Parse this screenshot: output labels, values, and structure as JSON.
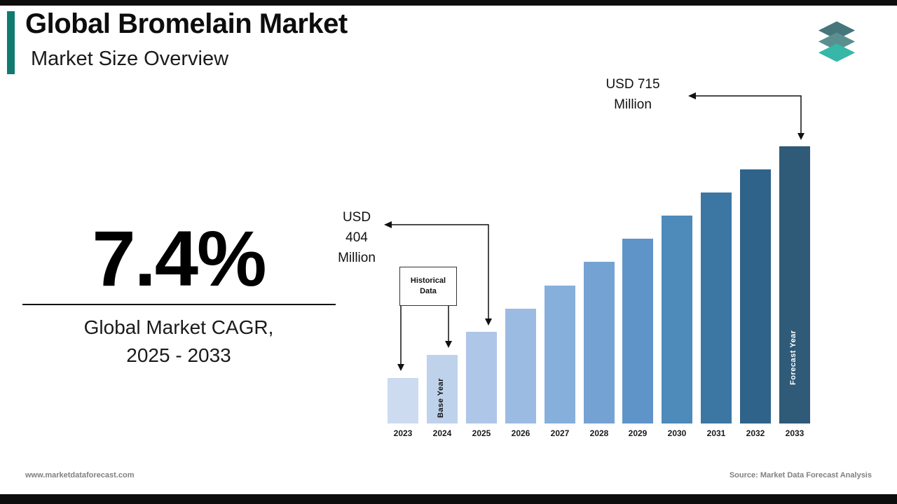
{
  "header": {
    "title": "Global Bromelain Market",
    "subtitle": "Market Size Overview"
  },
  "stat": {
    "value": "7.4%",
    "label": "Global Market CAGR,\n2025 - 2033"
  },
  "annotations": {
    "usd715": "USD 715\nMillion",
    "usd404": "USD\n404\nMillion",
    "historical": "Historical\nData",
    "base_year": "Base Year",
    "forecast_year": "Forecast Year"
  },
  "footer": {
    "website": "www.marketdataforecast.com",
    "source": "Source: Market Data Forecast Analysis"
  },
  "colors": {
    "accent_teal": "#117a70",
    "strip_black": "#0d0d0d",
    "logo_top": "#45767c",
    "logo_middle": "#5b8f8f",
    "logo_bottom": "#36b7a8"
  },
  "chart_data": {
    "type": "bar",
    "title": "Global Bromelain Market Size, 2023-2033",
    "unit": "USD Million",
    "categories": [
      "2023",
      "2024",
      "2025",
      "2026",
      "2027",
      "2028",
      "2029",
      "2030",
      "2031",
      "2032",
      "2033"
    ],
    "values": [
      350,
      376,
      404,
      434,
      466,
      500,
      537,
      577,
      620,
      666,
      715
    ],
    "labeled_points": [
      {
        "category": "2025",
        "label": "USD 404 Million"
      },
      {
        "category": "2033",
        "label": "USD 715 Million"
      }
    ],
    "bar_colors": [
      "#ccdbf0",
      "#bfd2ec",
      "#aec6e8",
      "#9cbbe3",
      "#87afdc",
      "#74a3d3",
      "#5f94c8",
      "#4e8aba",
      "#3c77a4",
      "#2f6389",
      "#2f5a78"
    ],
    "historical_years": [
      "2023",
      "2024"
    ],
    "base_year": "2024",
    "forecast_year": "2033",
    "cagr": "7.4%",
    "xlabel": "",
    "ylabel": "",
    "grid": false,
    "legend": false
  }
}
